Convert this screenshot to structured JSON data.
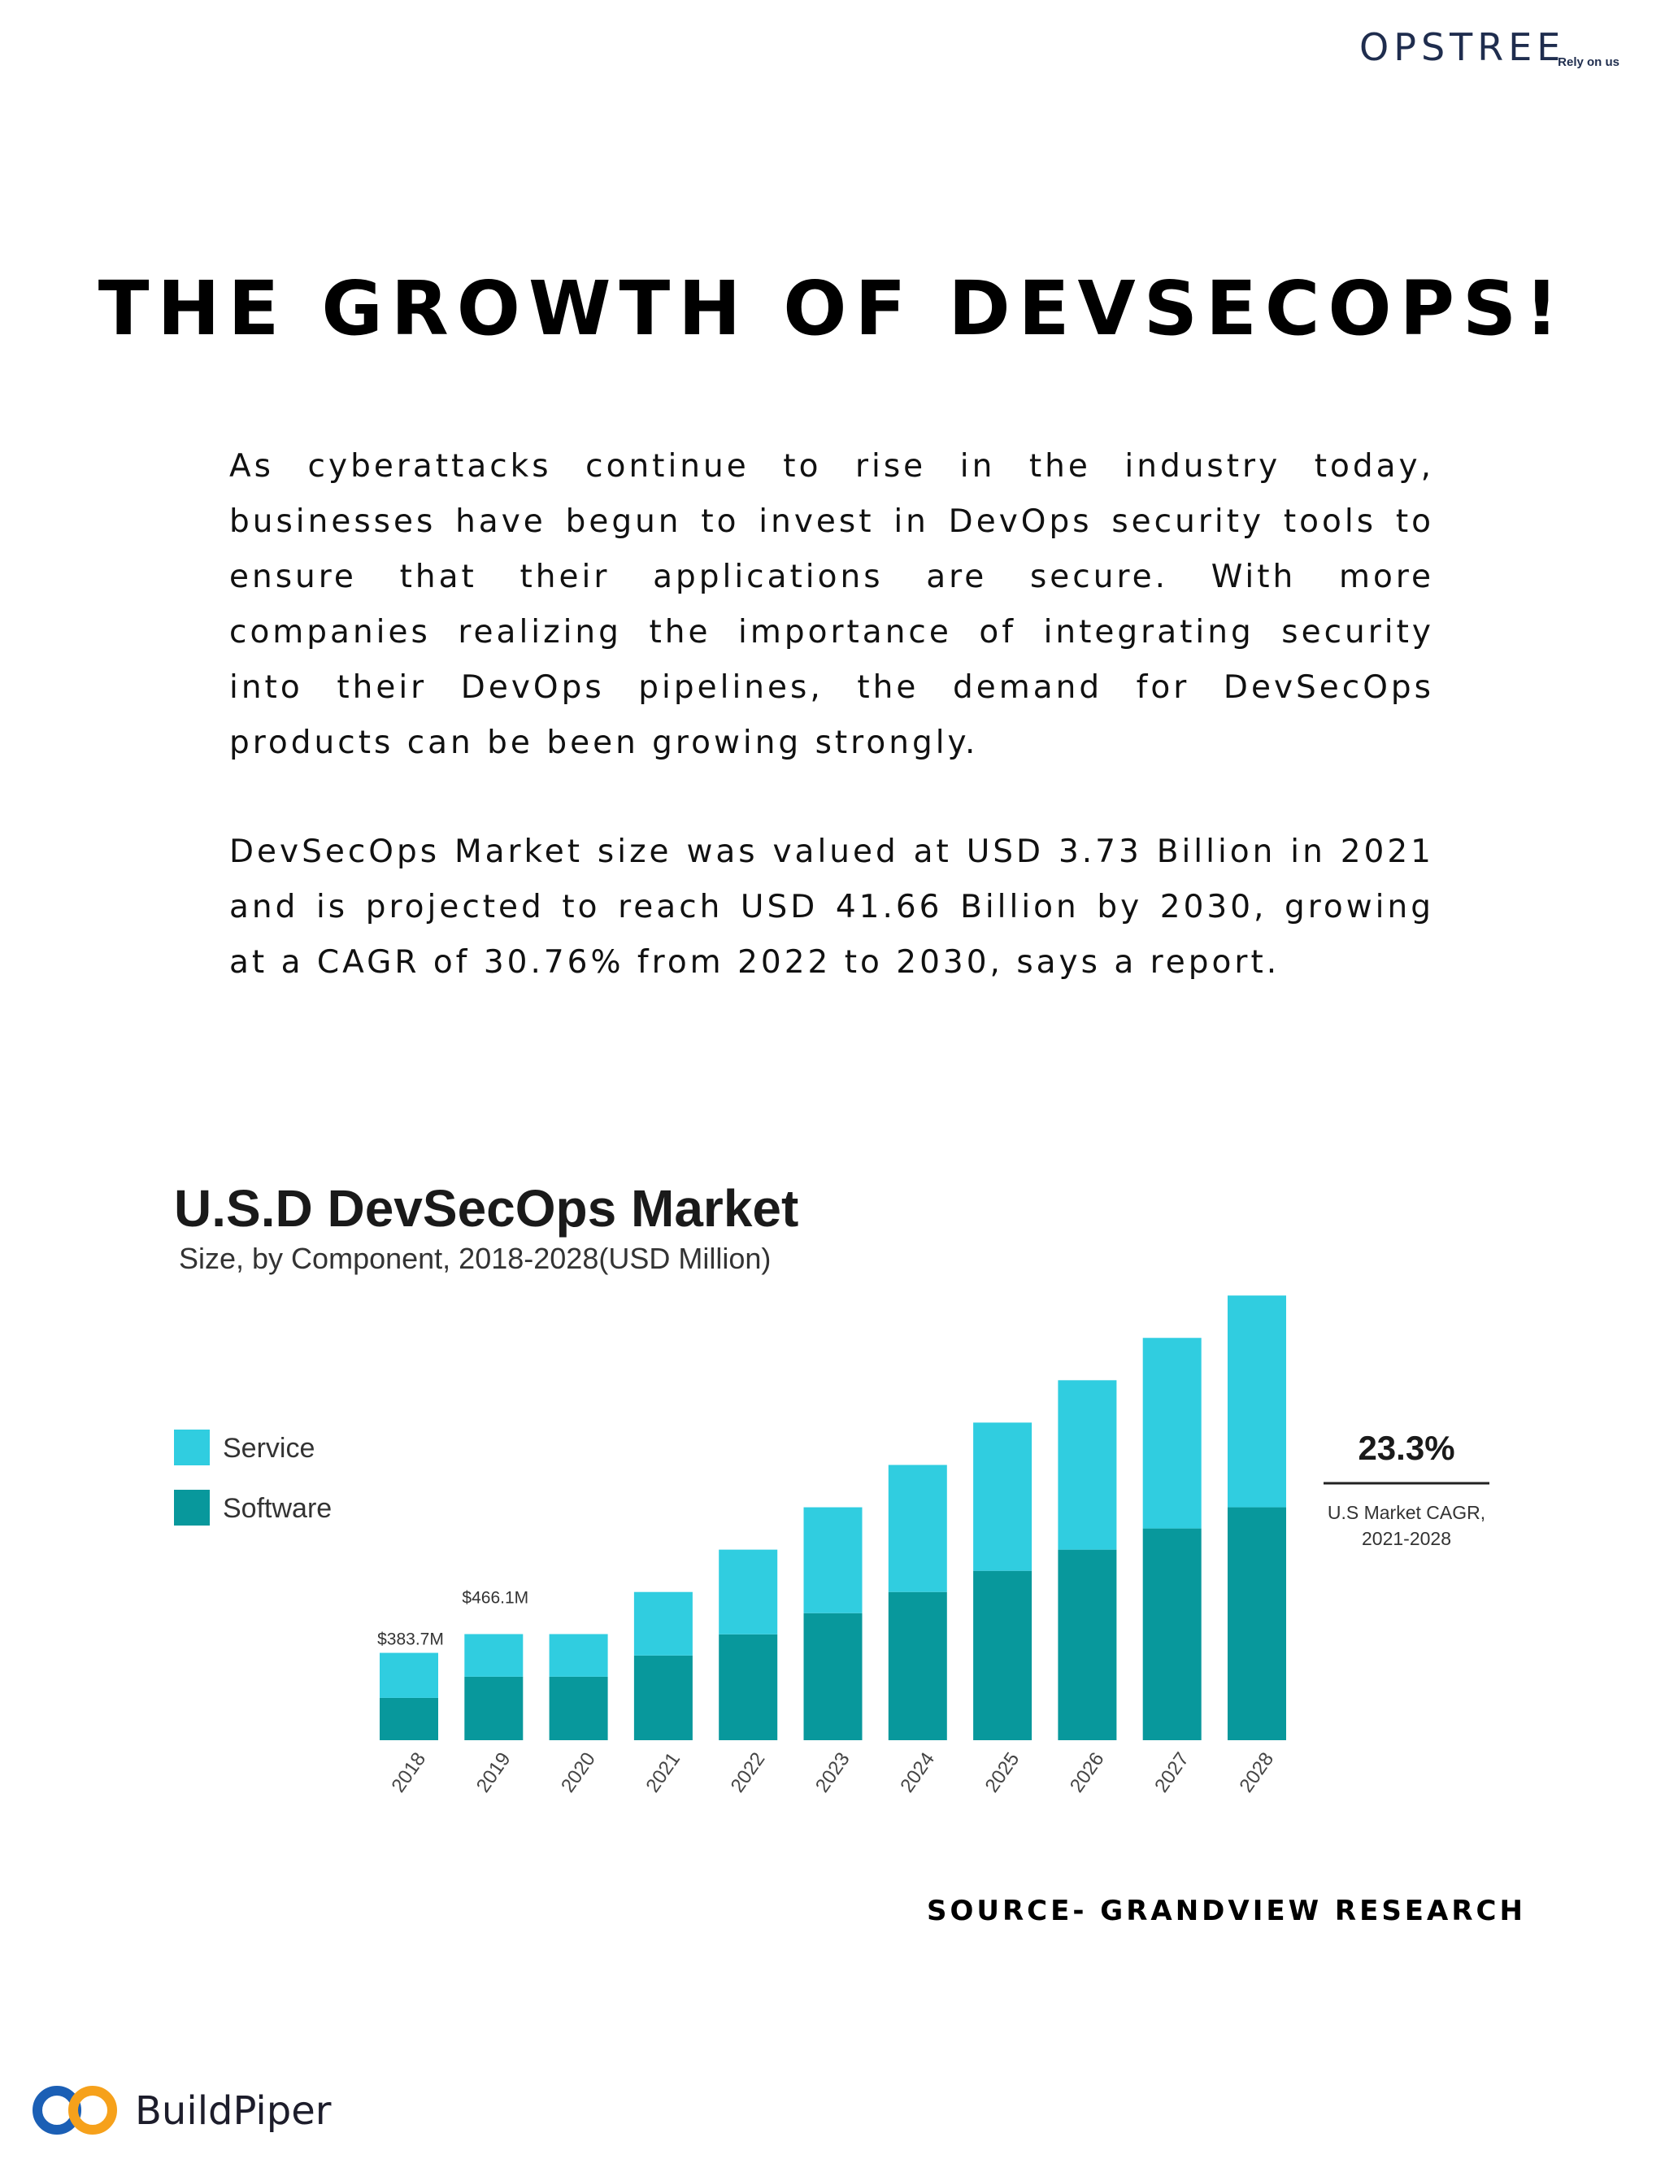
{
  "brand": {
    "opstree_name": "OPSTREE",
    "opstree_tagline": "Rely on us",
    "buildpiper_name": "BuildPiper"
  },
  "heading": "THE GROWTH OF DEVSECOPS!",
  "paragraphs": [
    "As cyberattacks continue to rise in the industry today, businesses have begun to invest in DevOps security tools to ensure that their applications are secure. With more companies realizing the importance of integrating security into their DevOps pipelines, the demand for DevSecOps products can be been growing strongly.",
    "DevSecOps Market size was valued at USD 3.73 Billion in 2021 and is projected to reach USD 41.66 Billion by 2030, growing at a CAGR of 30.76% from 2022 to 2030, says a report."
  ],
  "source": "SOURCE- GRANDVIEW RESEARCH",
  "colors": {
    "service": "#30cde0",
    "software": "#08989c",
    "brand_navy": "#1f2d4e",
    "bp_blue": "#1b5fb5",
    "bp_orange": "#f6a11b"
  },
  "chart_data": {
    "type": "bar",
    "stacked": true,
    "title": "U.S.D DevSecOps Market",
    "subtitle": "Size, by Component, 2018-2028(USD Million)",
    "categories": [
      "2018",
      "2019",
      "2020",
      "2021",
      "2022",
      "2023",
      "2024",
      "2025",
      "2026",
      "2027",
      "2028"
    ],
    "series": [
      {
        "name": "Software",
        "values": [
          186,
          279,
          279,
          372,
          465,
          558,
          651,
          744,
          837,
          930,
          1023
        ],
        "color": "#08989c"
      },
      {
        "name": "Service",
        "values": [
          197.7,
          187.1,
          187.1,
          279,
          372,
          465,
          558,
          651,
          744,
          837,
          930
        ],
        "color": "#30cde0"
      }
    ],
    "data_labels": [
      {
        "category": "2018",
        "text": "$383.7M"
      },
      {
        "category": "2019",
        "text": "$466.1M"
      }
    ],
    "ylim": [
      0,
      2000
    ],
    "legend_position": "top-left",
    "annotation": {
      "value": "23.3%",
      "caption_line1": "U.S Market  CAGR,",
      "caption_line2": "2021-2028"
    }
  }
}
